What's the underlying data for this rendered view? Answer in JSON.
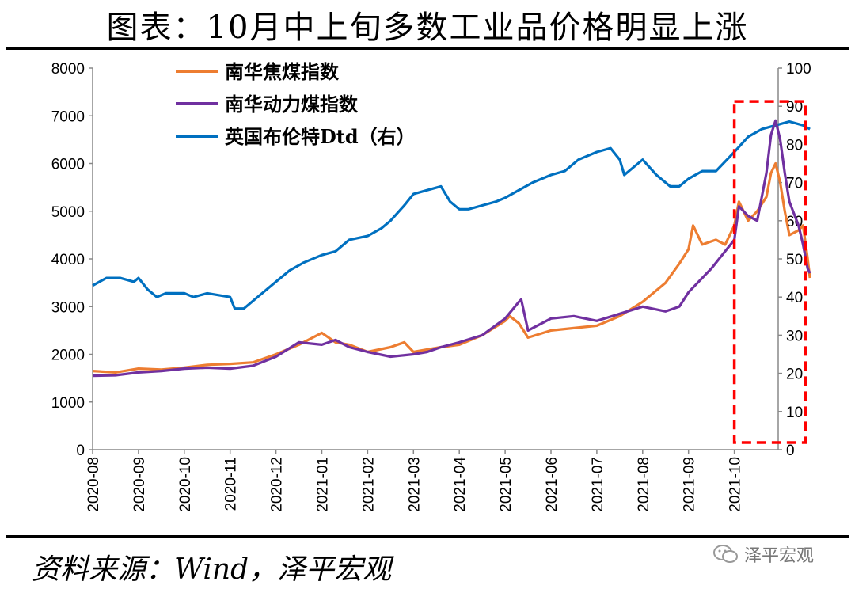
{
  "title": "图表：10月中上旬多数工业品价格明显上涨",
  "source": "资料来源：Wind，泽平宏观",
  "watermark": "泽平宏观",
  "colors": {
    "coke": "#ED7D31",
    "coal": "#7030A0",
    "brent": "#0070C0",
    "highlight": "#FF0000"
  },
  "chart_data": {
    "type": "line",
    "title": "10月中上旬多数工业品价格明显上涨",
    "x_tick_labels": [
      "2020-08",
      "2020-09",
      "2020-10",
      "2020-11",
      "2020-12",
      "2021-01",
      "2021-02",
      "2021-03",
      "2021-04",
      "2021-05",
      "2021-06",
      "2021-07",
      "2021-08",
      "2021-09",
      "2021-10"
    ],
    "y_left": {
      "min": 0,
      "max": 8000,
      "step": 1000,
      "ticks": [
        "0",
        "1000",
        "2000",
        "3000",
        "4000",
        "5000",
        "6000",
        "7000",
        "8000"
      ]
    },
    "y_right": {
      "min": 0,
      "max": 100,
      "step": 10,
      "ticks": [
        "0",
        "10",
        "20",
        "30",
        "40",
        "50",
        "60",
        "70",
        "80",
        "90",
        "100"
      ]
    },
    "legend_position": "top-left",
    "series": [
      {
        "name": "南华焦煤指数",
        "axis": "left",
        "color": "#ED7D31",
        "points": [
          [
            0,
            1650
          ],
          [
            0.5,
            1620
          ],
          [
            1.0,
            1700
          ],
          [
            1.5,
            1680
          ],
          [
            2.0,
            1720
          ],
          [
            2.5,
            1780
          ],
          [
            3.0,
            1800
          ],
          [
            3.5,
            1830
          ],
          [
            4.0,
            2000
          ],
          [
            4.5,
            2200
          ],
          [
            5.0,
            2450
          ],
          [
            5.3,
            2250
          ],
          [
            5.6,
            2200
          ],
          [
            6.0,
            2050
          ],
          [
            6.5,
            2150
          ],
          [
            6.8,
            2250
          ],
          [
            7.0,
            2050
          ],
          [
            7.3,
            2100
          ],
          [
            7.6,
            2150
          ],
          [
            8.0,
            2200
          ],
          [
            8.5,
            2400
          ],
          [
            9.0,
            2700
          ],
          [
            9.1,
            2800
          ],
          [
            9.3,
            2650
          ],
          [
            9.5,
            2350
          ],
          [
            10.0,
            2500
          ],
          [
            10.5,
            2550
          ],
          [
            11.0,
            2600
          ],
          [
            11.5,
            2800
          ],
          [
            12.0,
            3100
          ],
          [
            12.5,
            3500
          ],
          [
            12.8,
            3900
          ],
          [
            13.0,
            4200
          ],
          [
            13.1,
            4700
          ],
          [
            13.3,
            4300
          ],
          [
            13.6,
            4400
          ],
          [
            13.8,
            4300
          ],
          [
            14.0,
            4700
          ],
          [
            14.1,
            5200
          ],
          [
            14.3,
            4800
          ],
          [
            14.5,
            5000
          ],
          [
            14.7,
            5300
          ],
          [
            14.8,
            5800
          ],
          [
            14.9,
            6000
          ],
          [
            15.0,
            5600
          ],
          [
            15.1,
            5000
          ],
          [
            15.2,
            4500
          ],
          [
            15.4,
            4600
          ],
          [
            15.5,
            4700
          ],
          [
            15.6,
            4000
          ],
          [
            15.65,
            3600
          ]
        ]
      },
      {
        "name": "南华动力煤指数",
        "axis": "left",
        "color": "#7030A0",
        "points": [
          [
            0,
            1550
          ],
          [
            0.5,
            1560
          ],
          [
            1.0,
            1620
          ],
          [
            1.5,
            1650
          ],
          [
            2.0,
            1700
          ],
          [
            2.5,
            1720
          ],
          [
            3.0,
            1700
          ],
          [
            3.5,
            1760
          ],
          [
            4.0,
            1950
          ],
          [
            4.5,
            2250
          ],
          [
            5.0,
            2200
          ],
          [
            5.3,
            2300
          ],
          [
            5.6,
            2150
          ],
          [
            6.0,
            2050
          ],
          [
            6.5,
            1950
          ],
          [
            7.0,
            2000
          ],
          [
            7.3,
            2050
          ],
          [
            7.6,
            2150
          ],
          [
            8.0,
            2250
          ],
          [
            8.5,
            2400
          ],
          [
            9.0,
            2750
          ],
          [
            9.3,
            3100
          ],
          [
            9.35,
            3150
          ],
          [
            9.5,
            2500
          ],
          [
            10.0,
            2750
          ],
          [
            10.5,
            2800
          ],
          [
            11.0,
            2700
          ],
          [
            11.5,
            2850
          ],
          [
            12.0,
            3000
          ],
          [
            12.5,
            2900
          ],
          [
            12.8,
            3000
          ],
          [
            13.0,
            3300
          ],
          [
            13.5,
            3800
          ],
          [
            14.0,
            4400
          ],
          [
            14.1,
            5100
          ],
          [
            14.3,
            4900
          ],
          [
            14.5,
            4800
          ],
          [
            14.7,
            5800
          ],
          [
            14.8,
            6600
          ],
          [
            14.9,
            6900
          ],
          [
            15.0,
            6500
          ],
          [
            15.1,
            5800
          ],
          [
            15.2,
            5200
          ],
          [
            15.4,
            4700
          ],
          [
            15.5,
            4300
          ],
          [
            15.6,
            3800
          ],
          [
            15.65,
            3700
          ]
        ]
      },
      {
        "name": "英国布伦特Dtd（右）",
        "axis": "right",
        "color": "#0070C0",
        "points": [
          [
            0,
            43
          ],
          [
            0.3,
            45
          ],
          [
            0.6,
            45
          ],
          [
            0.9,
            44
          ],
          [
            1.0,
            45
          ],
          [
            1.2,
            42
          ],
          [
            1.4,
            40
          ],
          [
            1.6,
            41
          ],
          [
            2.0,
            41
          ],
          [
            2.2,
            40
          ],
          [
            2.5,
            41
          ],
          [
            3.0,
            40
          ],
          [
            3.1,
            37
          ],
          [
            3.3,
            37
          ],
          [
            3.6,
            40
          ],
          [
            4.0,
            44
          ],
          [
            4.3,
            47
          ],
          [
            4.6,
            49
          ],
          [
            5.0,
            51
          ],
          [
            5.3,
            52
          ],
          [
            5.6,
            55
          ],
          [
            6.0,
            56
          ],
          [
            6.3,
            58
          ],
          [
            6.5,
            60
          ],
          [
            6.8,
            64
          ],
          [
            7.0,
            67
          ],
          [
            7.3,
            68
          ],
          [
            7.6,
            69
          ],
          [
            7.8,
            65
          ],
          [
            8.0,
            63
          ],
          [
            8.2,
            63
          ],
          [
            8.5,
            64
          ],
          [
            8.8,
            65
          ],
          [
            9.0,
            66
          ],
          [
            9.3,
            68
          ],
          [
            9.6,
            70
          ],
          [
            10.0,
            72
          ],
          [
            10.3,
            73
          ],
          [
            10.6,
            76
          ],
          [
            11.0,
            78
          ],
          [
            11.3,
            79
          ],
          [
            11.5,
            76
          ],
          [
            11.6,
            72
          ],
          [
            11.8,
            74
          ],
          [
            12.0,
            76
          ],
          [
            12.3,
            72
          ],
          [
            12.6,
            69
          ],
          [
            12.8,
            69
          ],
          [
            13.0,
            71
          ],
          [
            13.3,
            73
          ],
          [
            13.6,
            73
          ],
          [
            14.0,
            78
          ],
          [
            14.3,
            82
          ],
          [
            14.6,
            84
          ],
          [
            14.9,
            85
          ],
          [
            15.2,
            86
          ],
          [
            15.5,
            85
          ],
          [
            15.65,
            84
          ]
        ]
      }
    ],
    "highlight_box": {
      "x_start": 14.0,
      "x_end": 15.55,
      "y_left_min": 150,
      "y_left_max": 7300,
      "style": "dashed"
    }
  }
}
